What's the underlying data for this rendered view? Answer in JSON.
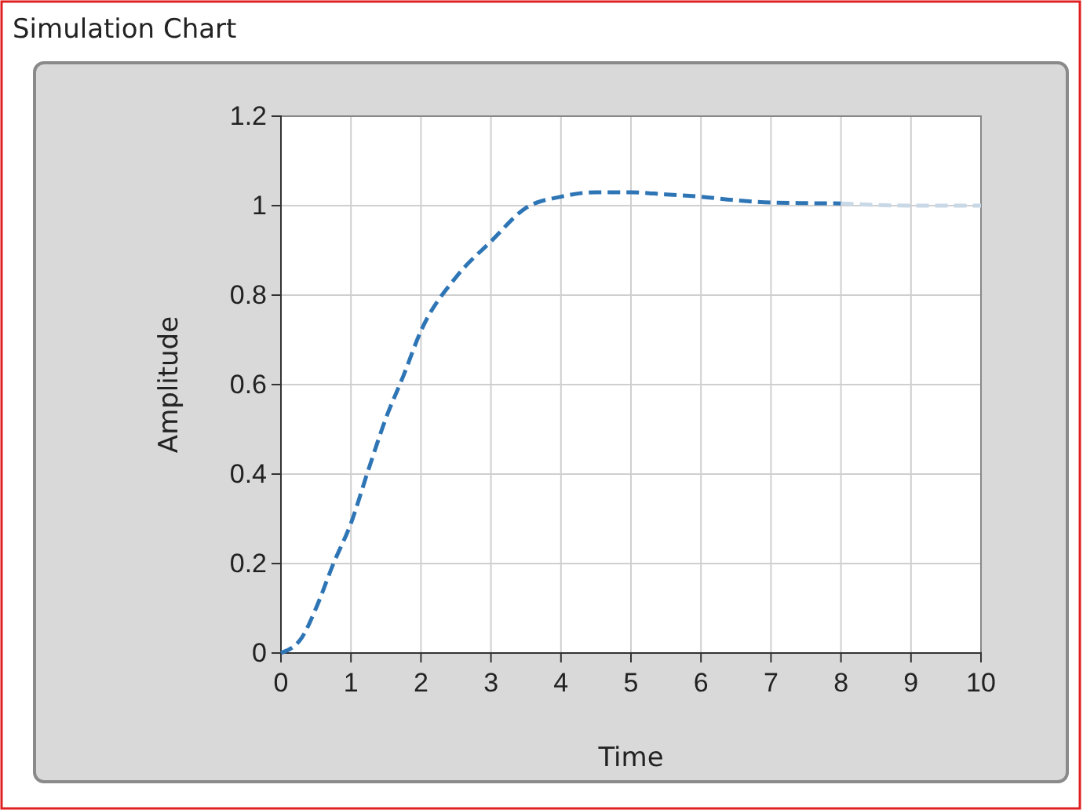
{
  "chart_data": {
    "type": "line",
    "title": "Simulation Chart",
    "xlabel": "Time",
    "ylabel": "Amplitude",
    "xlim": [
      0,
      10
    ],
    "ylim": [
      0,
      1.2
    ],
    "xticks": [
      0,
      1,
      2,
      3,
      4,
      5,
      6,
      7,
      8,
      9,
      10
    ],
    "yticks": [
      0,
      0.2,
      0.4,
      0.6,
      0.8,
      1,
      1.2
    ],
    "grid": true,
    "line_style": "dashed",
    "series": [
      {
        "color": "#2e75b6",
        "x": [
          0,
          0.3,
          0.5,
          0.75,
          1,
          1.25,
          1.5,
          1.75,
          2,
          2.5,
          3,
          3.5,
          4,
          4.5,
          5,
          5.5,
          6,
          6.5,
          7,
          8
        ],
        "values": [
          0,
          0.035,
          0.1,
          0.2,
          0.29,
          0.41,
          0.525,
          0.62,
          0.72,
          0.84,
          0.92,
          0.995,
          1.02,
          1.03,
          1.03,
          1.025,
          1.02,
          1.012,
          1.007,
          1.005
        ]
      },
      {
        "color": "#c8d8e6",
        "x": [
          8,
          9,
          10
        ],
        "values": [
          1.005,
          1,
          1
        ]
      }
    ]
  }
}
